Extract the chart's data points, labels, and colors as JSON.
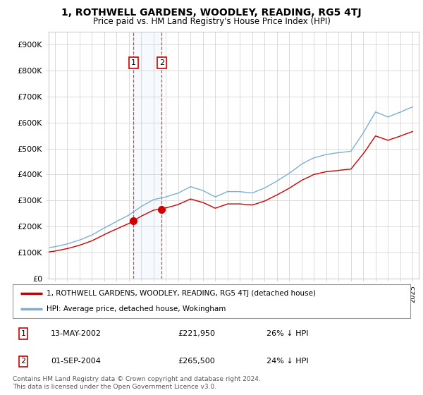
{
  "title": "1, ROTHWELL GARDENS, WOODLEY, READING, RG5 4TJ",
  "subtitle": "Price paid vs. HM Land Registry's House Price Index (HPI)",
  "ylim": [
    0,
    950000
  ],
  "yticks": [
    0,
    100000,
    200000,
    300000,
    400000,
    500000,
    600000,
    700000,
    800000,
    900000
  ],
  "ytick_labels": [
    "£0",
    "£100K",
    "£200K",
    "£300K",
    "£400K",
    "£500K",
    "£600K",
    "£700K",
    "£800K",
    "£900K"
  ],
  "xlim_start": 1995.5,
  "xlim_end": 2025.5,
  "sale1_date": 2002.37,
  "sale1_price": 221950,
  "sale1_label": "1",
  "sale2_date": 2004.67,
  "sale2_price": 265500,
  "sale2_label": "2",
  "legend_entry1": "1, ROTHWELL GARDENS, WOODLEY, READING, RG5 4TJ (detached house)",
  "legend_entry2": "HPI: Average price, detached house, Wokingham",
  "table_row1": [
    "1",
    "13-MAY-2002",
    "£221,950",
    "26% ↓ HPI"
  ],
  "table_row2": [
    "2",
    "01-SEP-2004",
    "£265,500",
    "24% ↓ HPI"
  ],
  "footnote": "Contains HM Land Registry data © Crown copyright and database right 2024.\nThis data is licensed under the Open Government Licence v3.0.",
  "line_color_property": "#cc0000",
  "line_color_hpi": "#7bafd4",
  "shade_color": "#ddeeff",
  "background_color": "#ffffff",
  "grid_color": "#cccccc"
}
